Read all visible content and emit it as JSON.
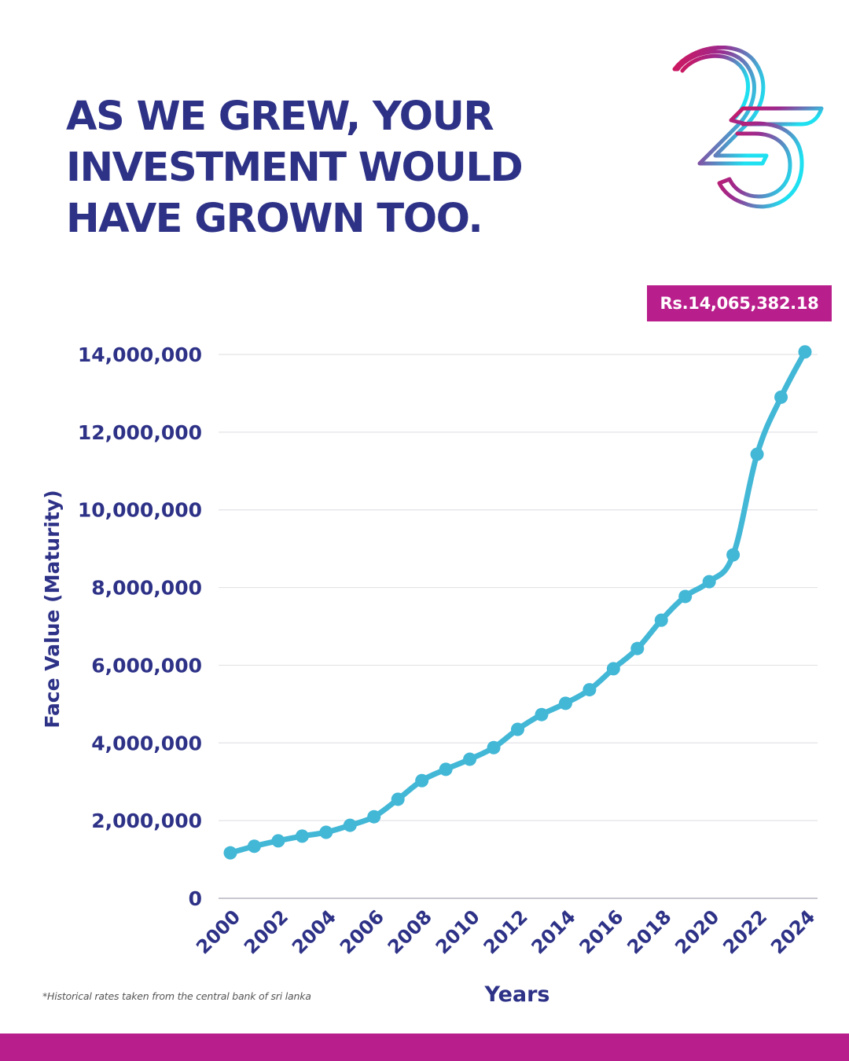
{
  "headline": {
    "lines": [
      "AS WE GREW, YOUR",
      "INVESTMENT WOULD",
      "HAVE GROWN TOO."
    ]
  },
  "logo": {
    "icon": "anniversary-25-logo-icon",
    "text": "25"
  },
  "badge": {
    "label": "Rs.14,065,382.18"
  },
  "footnote": "*Historical rates taken from the central bank of sri lanka",
  "colors": {
    "text": "#2e3287",
    "accent": "#b91f8c",
    "line": "#42b7d6",
    "grid": "#e3e3e8",
    "axis": "#c8c8d0",
    "logo_gradient": [
      "#d4145a",
      "#9b2a8f",
      "#1ee0f0"
    ]
  },
  "chart_data": {
    "type": "line",
    "title": "",
    "xlabel": "Years",
    "ylabel": "Face Value (Maturity)",
    "x": [
      2000,
      2001,
      2002,
      2003,
      2004,
      2005,
      2006,
      2007,
      2008,
      2009,
      2010,
      2011,
      2012,
      2013,
      2014,
      2015,
      2016,
      2017,
      2018,
      2019,
      2020,
      2021,
      2022,
      2023,
      2024
    ],
    "x_tick_labels": [
      "2000",
      "2002",
      "2004",
      "2006",
      "2008",
      "2010",
      "2012",
      "2014",
      "2016",
      "2018",
      "2020",
      "2022",
      "2024"
    ],
    "series": [
      {
        "name": "Face Value (Maturity)",
        "values": [
          1170000,
          1340000,
          1480000,
          1600000,
          1700000,
          1880000,
          2100000,
          2550000,
          3030000,
          3320000,
          3580000,
          3880000,
          4350000,
          4730000,
          5020000,
          5370000,
          5910000,
          6430000,
          7160000,
          7770000,
          8150000,
          8840000,
          11430000,
          12900000,
          14065382.18
        ]
      }
    ],
    "ylim": [
      0,
      14000000
    ],
    "y_ticks": [
      0,
      2000000,
      4000000,
      6000000,
      8000000,
      10000000,
      12000000,
      14000000
    ],
    "y_tick_labels": [
      "0",
      "2,000,000",
      "4,000,000",
      "6,000,000",
      "8,000,000",
      "10,000,000",
      "12,000,000",
      "14,000,000"
    ],
    "grid": true,
    "annotation": {
      "text": "Rs.14,065,382.18",
      "x": 2024
    },
    "legend": "none"
  }
}
